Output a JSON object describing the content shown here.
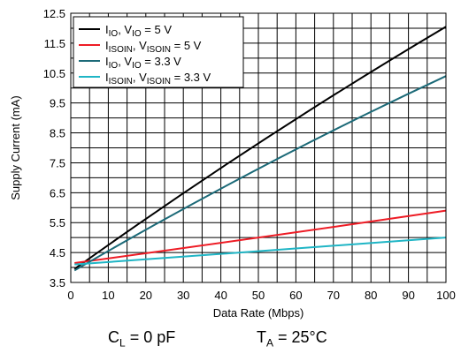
{
  "chart_data": {
    "type": "line",
    "xlabel": "Data Rate (Mbps)",
    "ylabel": "Supply Current (mA)",
    "xlim": [
      0,
      100
    ],
    "ylim": [
      3.5,
      12.5
    ],
    "x_ticks": [
      "0",
      "10",
      "20",
      "30",
      "40",
      "50",
      "60",
      "70",
      "80",
      "90",
      "100"
    ],
    "y_ticks": [
      "3.5",
      "4.5",
      "5.5",
      "6.5",
      "7.5",
      "8.5",
      "9.5",
      "10.5",
      "11.5",
      "12.5"
    ],
    "grid": true,
    "legend_position": "top-left",
    "series": [
      {
        "name": "I_IO, V_IO = 5 V",
        "color": "#000000",
        "x": [
          1,
          50,
          100
        ],
        "y": [
          3.95,
          8.15,
          12.05
        ]
      },
      {
        "name": "I_ISOIN, V_ISOIN = 5 V",
        "color": "#ee1c25",
        "x": [
          1,
          50,
          100
        ],
        "y": [
          4.15,
          5.0,
          5.9
        ]
      },
      {
        "name": "I_IO, V_IO = 3.3 V",
        "color": "#1c6a78",
        "x": [
          1,
          50,
          100
        ],
        "y": [
          3.9,
          7.3,
          10.4
        ]
      },
      {
        "name": "I_ISOIN, V_ISOIN = 3.3 V",
        "color": "#1fb5c5",
        "x": [
          1,
          50,
          100
        ],
        "y": [
          4.1,
          4.55,
          5.0
        ]
      }
    ],
    "legend": [
      {
        "main1": "I",
        "sub1": "IO",
        "mid": ", V",
        "sub2": "IO",
        "tail": " = 5 V"
      },
      {
        "main1": "I",
        "sub1": "ISOIN",
        "mid": ", V",
        "sub2": "ISOIN",
        "tail": " = 5 V"
      },
      {
        "main1": "I",
        "sub1": "IO",
        "mid": ", V",
        "sub2": "IO",
        "tail": " = 3.3 V"
      },
      {
        "main1": "I",
        "sub1": "ISOIN",
        "mid": ", V",
        "sub2": "ISOIN",
        "tail": " = 3.3 V"
      }
    ]
  },
  "conditions": {
    "load_cap": {
      "main": "C",
      "sub": "L",
      "tail": " = 0 pF"
    },
    "temperature": {
      "main": "T",
      "sub": "A",
      "tail": " = 25°C"
    }
  }
}
